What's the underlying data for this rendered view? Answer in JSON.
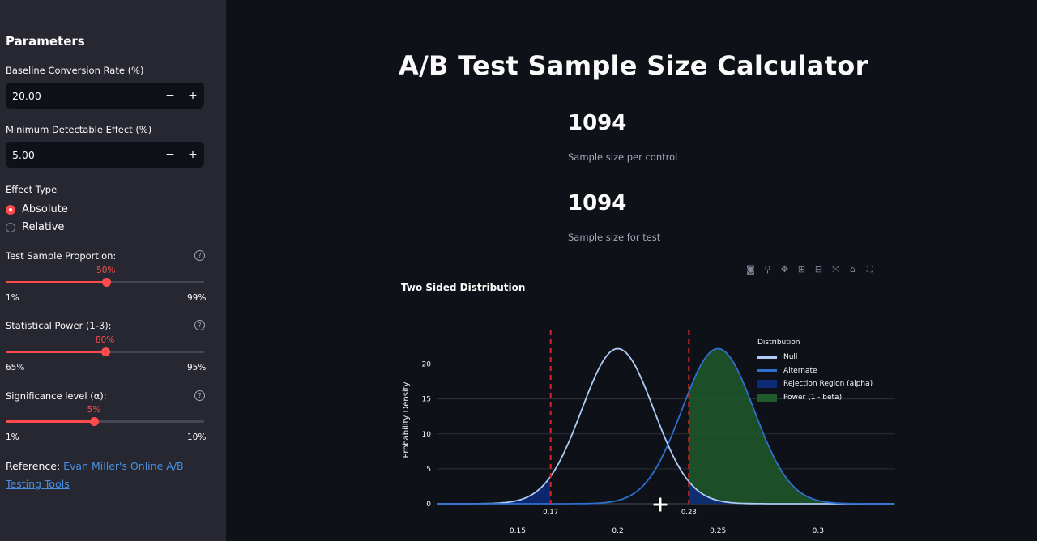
{
  "sidebar": {
    "title": "Parameters",
    "baseline": {
      "label": "Baseline Conversion Rate (%)",
      "value": "20.00",
      "minus": "−",
      "plus": "+"
    },
    "mde": {
      "label": "Minimum Detectable Effect (%)",
      "value": "5.00",
      "minus": "−",
      "plus": "+"
    },
    "effect_type": {
      "label": "Effect Type",
      "options": [
        "Absolute",
        "Relative"
      ],
      "selected": "Absolute"
    },
    "test_prop": {
      "label": "Test Sample Proportion:",
      "value_text": "50%",
      "min": "1%",
      "max": "99%",
      "fraction": 0.5052
    },
    "power": {
      "label": "Statistical Power (1-β):",
      "value_text": "80%",
      "min": "65%",
      "max": "95%",
      "fraction": 0.5
    },
    "alpha": {
      "label": "Significance level (α):",
      "value_text": "5%",
      "min": "1%",
      "max": "10%",
      "fraction": 0.4444
    },
    "help_icon": "question-circle-icon",
    "reference": {
      "prefix": "Reference: ",
      "link_text": "Evan Miller's Online A/B Testing Tools"
    }
  },
  "main": {
    "title": "A/B Test Sample Size Calculator",
    "metric1": {
      "value": "1094",
      "label": "Sample size per control"
    },
    "metric2": {
      "value": "1094",
      "label": "Sample size for test"
    },
    "modebar_icons": [
      "camera-icon",
      "zoom-icon",
      "pan-icon",
      "zoom-in-icon",
      "zoom-out-icon",
      "autoscale-icon",
      "reset-axes-icon",
      "fullscreen-icon"
    ]
  },
  "colors": {
    "accent": "#ff4b4b",
    "null_line": "#aecbf5",
    "alt_line": "#2e6fcf",
    "power_fill": "#1f5a2a",
    "reject_fill": "#0d2a78",
    "crit_line": "#d62728"
  },
  "chart_data": {
    "type": "line",
    "title": "Two Sided Distribution",
    "xlabel": "",
    "ylabel": "Probability Density",
    "xlim": [
      0.11,
      0.3385
    ],
    "ylim": [
      0,
      24
    ],
    "x_ticks": [
      "0.15",
      "0.2",
      "0.25",
      "0.3"
    ],
    "y_ticks": [
      "0",
      "5",
      "10",
      "15",
      "20"
    ],
    "critical_labels": [
      "0.17",
      "0.23"
    ],
    "critical_values": [
      0.1665,
      0.2355
    ],
    "legend": {
      "title": "Distribution",
      "placement": "top-right",
      "items": [
        "Null",
        "Alternate",
        "Rejection Region (alpha)",
        "Power (1 - beta)"
      ]
    },
    "series": [
      {
        "name": "Null",
        "distribution": "normal",
        "mean": 0.2,
        "sd": 0.018,
        "peak": 22.2
      },
      {
        "name": "Alternate",
        "distribution": "normal",
        "mean": 0.25,
        "sd": 0.018,
        "peak": 22.2
      }
    ],
    "grid": true
  }
}
